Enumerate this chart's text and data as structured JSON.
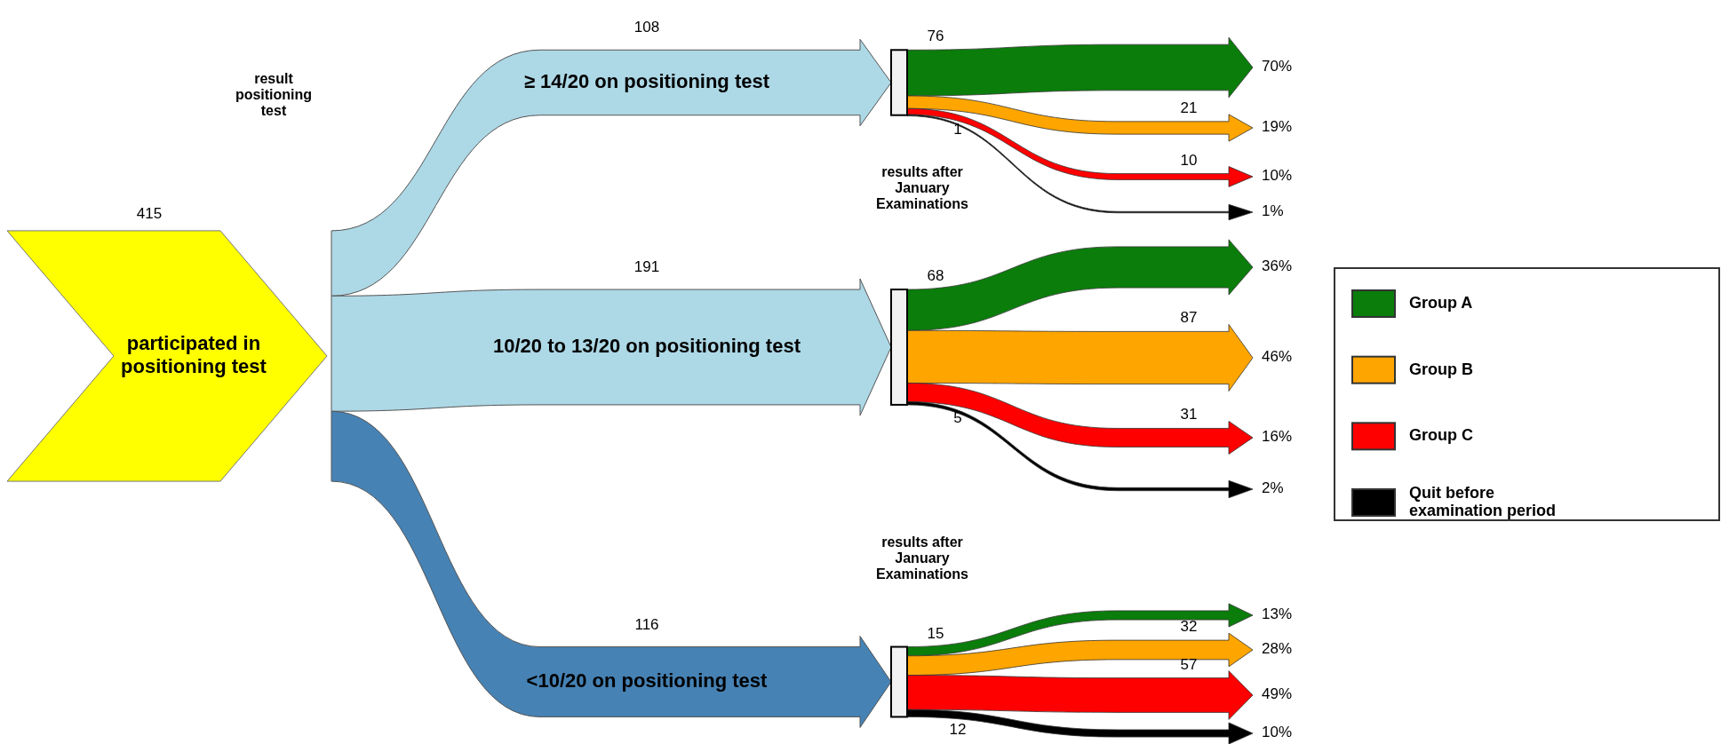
{
  "chart_data": {
    "type": "other",
    "categories": [
      "≥ 14/20 on positioning test",
      "10/20 to 13/20 on positioning test",
      "<10/20 on positioning test"
    ],
    "colors": [
      "#add8e6",
      "#add8e6",
      "#4682b4"
    ],
    "totals": [
      "108",
      "191",
      "116"
    ],
    "series": [
      {
        "name": "Group A",
        "color": "#0a7d0a",
        "values": [
          76,
          68,
          15
        ]
      },
      {
        "name": "Group B",
        "color": "#ffa500",
        "values": [
          21,
          87,
          32
        ]
      },
      {
        "name": "Group C",
        "color": "#ff0000",
        "values": [
          10,
          31,
          57
        ]
      },
      {
        "name": "Quit before examination period",
        "color": "#000000",
        "values": [
          1,
          5,
          12
        ]
      }
    ],
    "data_labels": true,
    "legend": "right",
    "annotations": [
      "participated in positioning test",
      "415",
      "result positioning test",
      "results after January Examinations",
      "results after January Examinations",
      "70%",
      "36%",
      "13%",
      "19%",
      "46%",
      "28%",
      "10%",
      "16%",
      "49%",
      "1%",
      "2%",
      "10%"
    ]
  }
}
